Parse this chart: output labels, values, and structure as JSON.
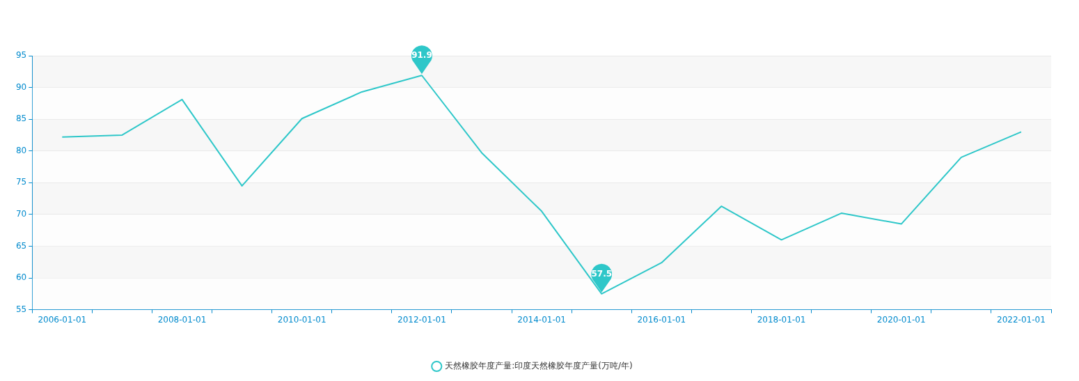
{
  "chart_data": {
    "type": "line",
    "categories": [
      "2006-01-01",
      null,
      "2008-01-01",
      null,
      "2010-01-01",
      null,
      "2012-01-01",
      null,
      "2014-01-01",
      null,
      "2016-01-01",
      null,
      "2018-01-01",
      null,
      "2020-01-01",
      null,
      "2022-01-01"
    ],
    "series": [
      {
        "name": "天然橡胶年度产量:印度天然橡胶年度产量(万吨/年)",
        "color": "#2ec7c9",
        "values": [
          82.2,
          82.5,
          88.1,
          74.5,
          85.1,
          89.3,
          91.9,
          79.7,
          70.5,
          57.5,
          62.4,
          71.3,
          66.0,
          70.2,
          68.5,
          79.0,
          83.0
        ],
        "value_labels": [
          null,
          null,
          null,
          null,
          null,
          null,
          "91.9",
          null,
          null,
          "57.5",
          null,
          null,
          null,
          null,
          null,
          null,
          null
        ]
      }
    ],
    "ylim": [
      55,
      95
    ],
    "yticks": [
      55,
      60,
      65,
      70,
      75,
      80,
      85,
      90,
      95
    ],
    "grid": "y",
    "legend": "bottom",
    "marker": "none",
    "line_style": "solid"
  }
}
